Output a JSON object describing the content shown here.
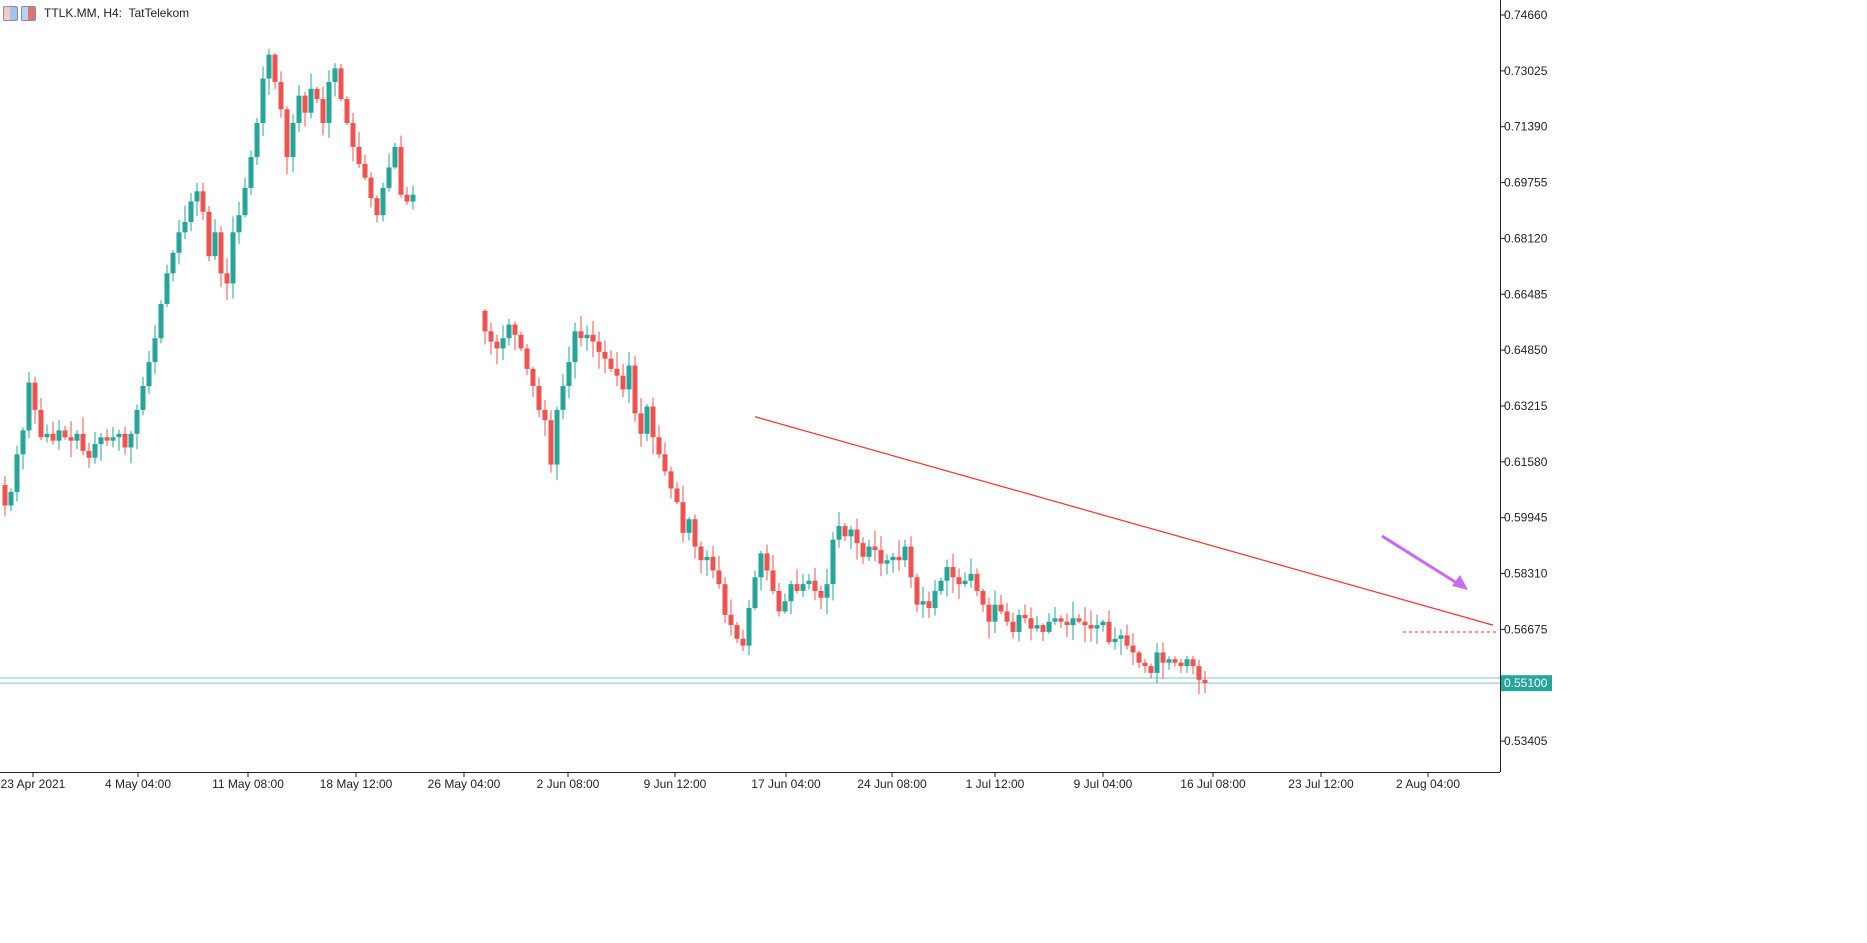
{
  "header": {
    "symbol_label": "TTLK.MM, H4:  TatTelekom"
  },
  "colors": {
    "bull": "#26a69a",
    "bear": "#ef5350",
    "trend": "#ff2d2d",
    "arrow": "#c86bf0",
    "hline": "#7fc7cf",
    "axis": "#222222"
  },
  "chart_data": {
    "type": "candlestick",
    "title": "TTLK.MM, H4:  TatTelekom",
    "y_ticks": [
      "0.74660",
      "0.73025",
      "0.71390",
      "0.69755",
      "0.68120",
      "0.66485",
      "0.64850",
      "0.63215",
      "0.61580",
      "0.59945",
      "0.58310",
      "0.56675",
      "0.53405"
    ],
    "ylim": [
      0.525,
      0.751
    ],
    "x_ticks": [
      "23 Apr 2021",
      "4 May 04:00",
      "11 May 08:00",
      "18 May 12:00",
      "26 May 04:00",
      "2 Jun 08:00",
      "9 Jun 12:00",
      "17 Jun 04:00",
      "24 Jun 08:00",
      "1 Jul 12:00",
      "9 Jul 04:00",
      "16 Jul 08:00",
      "23 Jul 12:00",
      "2 Aug 04:00"
    ],
    "current_price": "0.55100",
    "ask_line": 0.5525,
    "bid_line": 0.551,
    "trendline": {
      "from_index": 125,
      "from_price": 0.629,
      "to_index": 248,
      "to_price": 0.568
    },
    "pending_level": {
      "from_index": 233,
      "to_index": 249,
      "price": 0.566
    },
    "price_series": [
      0.603,
      0.607,
      0.618,
      0.625,
      0.639,
      0.631,
      0.623,
      0.624,
      0.622,
      0.625,
      0.623,
      0.622,
      0.624,
      0.619,
      0.617,
      0.621,
      0.623,
      0.622,
      0.623,
      0.624,
      0.62,
      0.624,
      0.631,
      0.638,
      0.645,
      0.652,
      0.662,
      0.671,
      0.677,
      0.683,
      0.686,
      0.692,
      0.695,
      0.689,
      0.676,
      0.683,
      0.671,
      0.668,
      0.683,
      0.688,
      0.696,
      0.705,
      0.715,
      0.728,
      0.735,
      0.727,
      0.719,
      0.705,
      0.715,
      0.723,
      0.718,
      0.725,
      0.722,
      0.715,
      0.727,
      0.731,
      0.722,
      0.715,
      0.708,
      0.703,
      0.699,
      0.693,
      0.688,
      0.696,
      0.702,
      0.708,
      0.694,
      0.692,
      0.694,
      null,
      null,
      null,
      null,
      null,
      null,
      null,
      null,
      null,
      null,
      null,
      0.654,
      0.651,
      0.649,
      0.652,
      0.656,
      0.653,
      0.649,
      0.643,
      0.638,
      0.631,
      0.628,
      0.615,
      0.631,
      0.638,
      0.645,
      0.654,
      0.652,
      0.653,
      0.651,
      0.648,
      0.646,
      0.643,
      0.641,
      0.637,
      0.644,
      0.63,
      0.624,
      0.632,
      0.623,
      0.618,
      0.613,
      0.608,
      0.604,
      0.595,
      0.599,
      0.591,
      0.587,
      0.588,
      0.584,
      0.58,
      0.571,
      0.568,
      0.564,
      0.562,
      0.573,
      0.582,
      0.589,
      0.584,
      0.578,
      0.572,
      0.575,
      0.58,
      0.578,
      0.58,
      0.581,
      0.578,
      0.576,
      0.58,
      0.593,
      0.597,
      0.594,
      0.596,
      0.592,
      0.588,
      0.591,
      0.59,
      0.586,
      0.587,
      0.588,
      0.587,
      0.591,
      0.582,
      0.574,
      0.575,
      0.573,
      0.578,
      0.581,
      0.585,
      0.582,
      0.58,
      0.581,
      0.583,
      0.578,
      0.574,
      0.569,
      0.574,
      0.572,
      0.569,
      0.566,
      0.571,
      0.57,
      0.567,
      0.568,
      0.566,
      0.569,
      0.57,
      0.569,
      0.568,
      0.57,
      0.569,
      0.568,
      0.567,
      0.568,
      0.569,
      0.563,
      0.564,
      0.565,
      0.562,
      0.56,
      0.557,
      0.556,
      0.554,
      0.56,
      0.557,
      0.558,
      0.557,
      0.556,
      0.558,
      0.556,
      0.552,
      0.551
    ]
  }
}
